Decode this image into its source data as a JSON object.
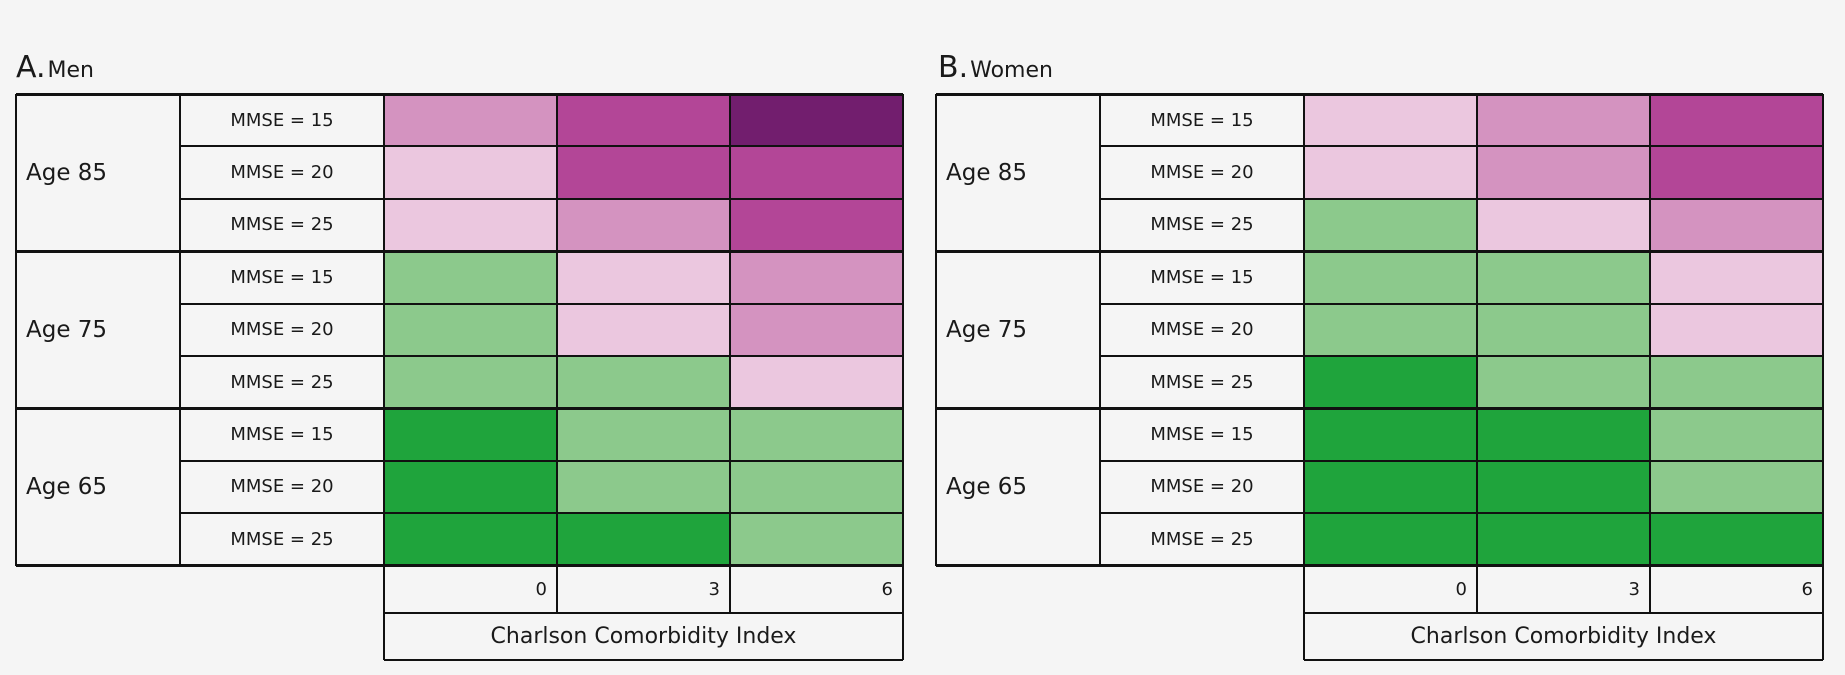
{
  "colors": {
    "-2": "#1fa43c",
    "-1": "#8cc98c",
    "1": "#ebc7df",
    "2": "#d493c0",
    "3": "#b34697",
    "4": "#721e6e"
  },
  "chart_data": [
    {
      "type": "heatmap",
      "panel_letter": "A.",
      "panel_name": "Men",
      "title": "A. Men",
      "xlabel": "Charlson Comorbidity Index",
      "x_ticks": [
        "0",
        "3",
        "6"
      ],
      "rows": [
        {
          "group": "Age 85",
          "label": "MMSE = 15",
          "values": [
            2,
            3,
            4
          ]
        },
        {
          "group": "Age 85",
          "label": "MMSE = 20",
          "values": [
            1,
            3,
            3
          ]
        },
        {
          "group": "Age 85",
          "label": "MMSE = 25",
          "values": [
            1,
            2,
            3
          ]
        },
        {
          "group": "Age 75",
          "label": "MMSE = 15",
          "values": [
            -1,
            1,
            2
          ]
        },
        {
          "group": "Age 75",
          "label": "MMSE = 20",
          "values": [
            -1,
            1,
            2
          ]
        },
        {
          "group": "Age 75",
          "label": "MMSE = 25",
          "values": [
            -1,
            -1,
            1
          ]
        },
        {
          "group": "Age 65",
          "label": "MMSE = 15",
          "values": [
            -2,
            -1,
            -1
          ]
        },
        {
          "group": "Age 65",
          "label": "MMSE = 20",
          "values": [
            -2,
            -1,
            -1
          ]
        },
        {
          "group": "Age 65",
          "label": "MMSE = 25",
          "values": [
            -2,
            -2,
            -1
          ]
        }
      ],
      "groups": [
        "Age 85",
        "Age 75",
        "Age 65"
      ]
    },
    {
      "type": "heatmap",
      "panel_letter": "B.",
      "panel_name": "Women",
      "title": "B. Women",
      "xlabel": "Charlson Comorbidity Index",
      "x_ticks": [
        "0",
        "3",
        "6"
      ],
      "rows": [
        {
          "group": "Age 85",
          "label": "MMSE = 15",
          "values": [
            1,
            2,
            3
          ]
        },
        {
          "group": "Age 85",
          "label": "MMSE = 20",
          "values": [
            1,
            2,
            3
          ]
        },
        {
          "group": "Age 85",
          "label": "MMSE = 25",
          "values": [
            -1,
            1,
            2
          ]
        },
        {
          "group": "Age 75",
          "label": "MMSE = 15",
          "values": [
            -1,
            -1,
            1
          ]
        },
        {
          "group": "Age 75",
          "label": "MMSE = 20",
          "values": [
            -1,
            -1,
            1
          ]
        },
        {
          "group": "Age 75",
          "label": "MMSE = 25",
          "values": [
            -2,
            -1,
            -1
          ]
        },
        {
          "group": "Age 65",
          "label": "MMSE = 15",
          "values": [
            -2,
            -2,
            -1
          ]
        },
        {
          "group": "Age 65",
          "label": "MMSE = 20",
          "values": [
            -2,
            -2,
            -1
          ]
        },
        {
          "group": "Age 65",
          "label": "MMSE = 25",
          "values": [
            -2,
            -2,
            -2
          ]
        }
      ],
      "groups": [
        "Age 85",
        "Age 75",
        "Age 65"
      ]
    }
  ]
}
